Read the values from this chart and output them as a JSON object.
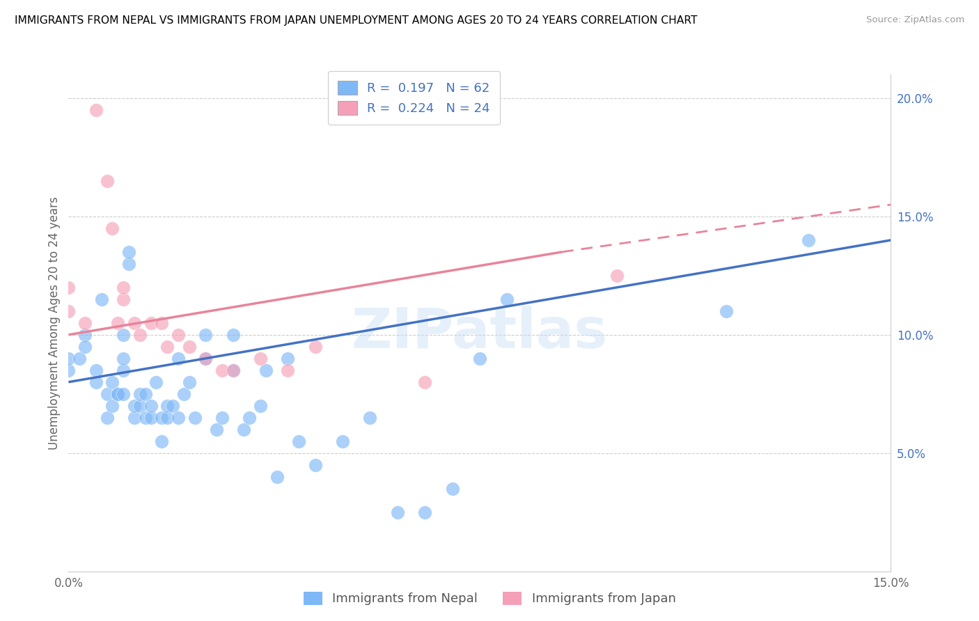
{
  "title": "IMMIGRANTS FROM NEPAL VS IMMIGRANTS FROM JAPAN UNEMPLOYMENT AMONG AGES 20 TO 24 YEARS CORRELATION CHART",
  "source": "Source: ZipAtlas.com",
  "ylabel_label": "Unemployment Among Ages 20 to 24 years",
  "xmin": 0.0,
  "xmax": 0.15,
  "ymin": 0.0,
  "ymax": 0.21,
  "yticks": [
    0.05,
    0.1,
    0.15,
    0.2
  ],
  "nepal_color": "#7eb8f7",
  "japan_color": "#f5a0b8",
  "nepal_line_color": "#4472c4",
  "japan_line_color": "#e8849a",
  "nepal_R": 0.197,
  "nepal_N": 62,
  "japan_R": 0.224,
  "japan_N": 24,
  "watermark": "ZIPatlas",
  "nepal_scatter_x": [
    0.0,
    0.0,
    0.002,
    0.003,
    0.003,
    0.005,
    0.005,
    0.006,
    0.007,
    0.007,
    0.008,
    0.008,
    0.009,
    0.009,
    0.01,
    0.01,
    0.01,
    0.01,
    0.011,
    0.011,
    0.012,
    0.012,
    0.013,
    0.013,
    0.014,
    0.014,
    0.015,
    0.015,
    0.016,
    0.017,
    0.017,
    0.018,
    0.018,
    0.019,
    0.02,
    0.02,
    0.021,
    0.022,
    0.023,
    0.025,
    0.025,
    0.027,
    0.028,
    0.03,
    0.03,
    0.032,
    0.033,
    0.035,
    0.036,
    0.038,
    0.04,
    0.042,
    0.045,
    0.05,
    0.055,
    0.06,
    0.065,
    0.07,
    0.075,
    0.08,
    0.12,
    0.135
  ],
  "nepal_scatter_y": [
    0.085,
    0.09,
    0.09,
    0.1,
    0.095,
    0.085,
    0.08,
    0.115,
    0.065,
    0.075,
    0.07,
    0.08,
    0.075,
    0.075,
    0.075,
    0.085,
    0.09,
    0.1,
    0.13,
    0.135,
    0.065,
    0.07,
    0.07,
    0.075,
    0.065,
    0.075,
    0.065,
    0.07,
    0.08,
    0.055,
    0.065,
    0.065,
    0.07,
    0.07,
    0.065,
    0.09,
    0.075,
    0.08,
    0.065,
    0.09,
    0.1,
    0.06,
    0.065,
    0.085,
    0.1,
    0.06,
    0.065,
    0.07,
    0.085,
    0.04,
    0.09,
    0.055,
    0.045,
    0.055,
    0.065,
    0.025,
    0.025,
    0.035,
    0.09,
    0.115,
    0.11,
    0.14
  ],
  "japan_scatter_x": [
    0.0,
    0.0,
    0.003,
    0.005,
    0.007,
    0.008,
    0.009,
    0.01,
    0.01,
    0.012,
    0.013,
    0.015,
    0.017,
    0.018,
    0.02,
    0.022,
    0.025,
    0.028,
    0.03,
    0.035,
    0.04,
    0.045,
    0.065,
    0.1
  ],
  "japan_scatter_y": [
    0.11,
    0.12,
    0.105,
    0.195,
    0.165,
    0.145,
    0.105,
    0.115,
    0.12,
    0.105,
    0.1,
    0.105,
    0.105,
    0.095,
    0.1,
    0.095,
    0.09,
    0.085,
    0.085,
    0.09,
    0.085,
    0.095,
    0.08,
    0.125
  ]
}
